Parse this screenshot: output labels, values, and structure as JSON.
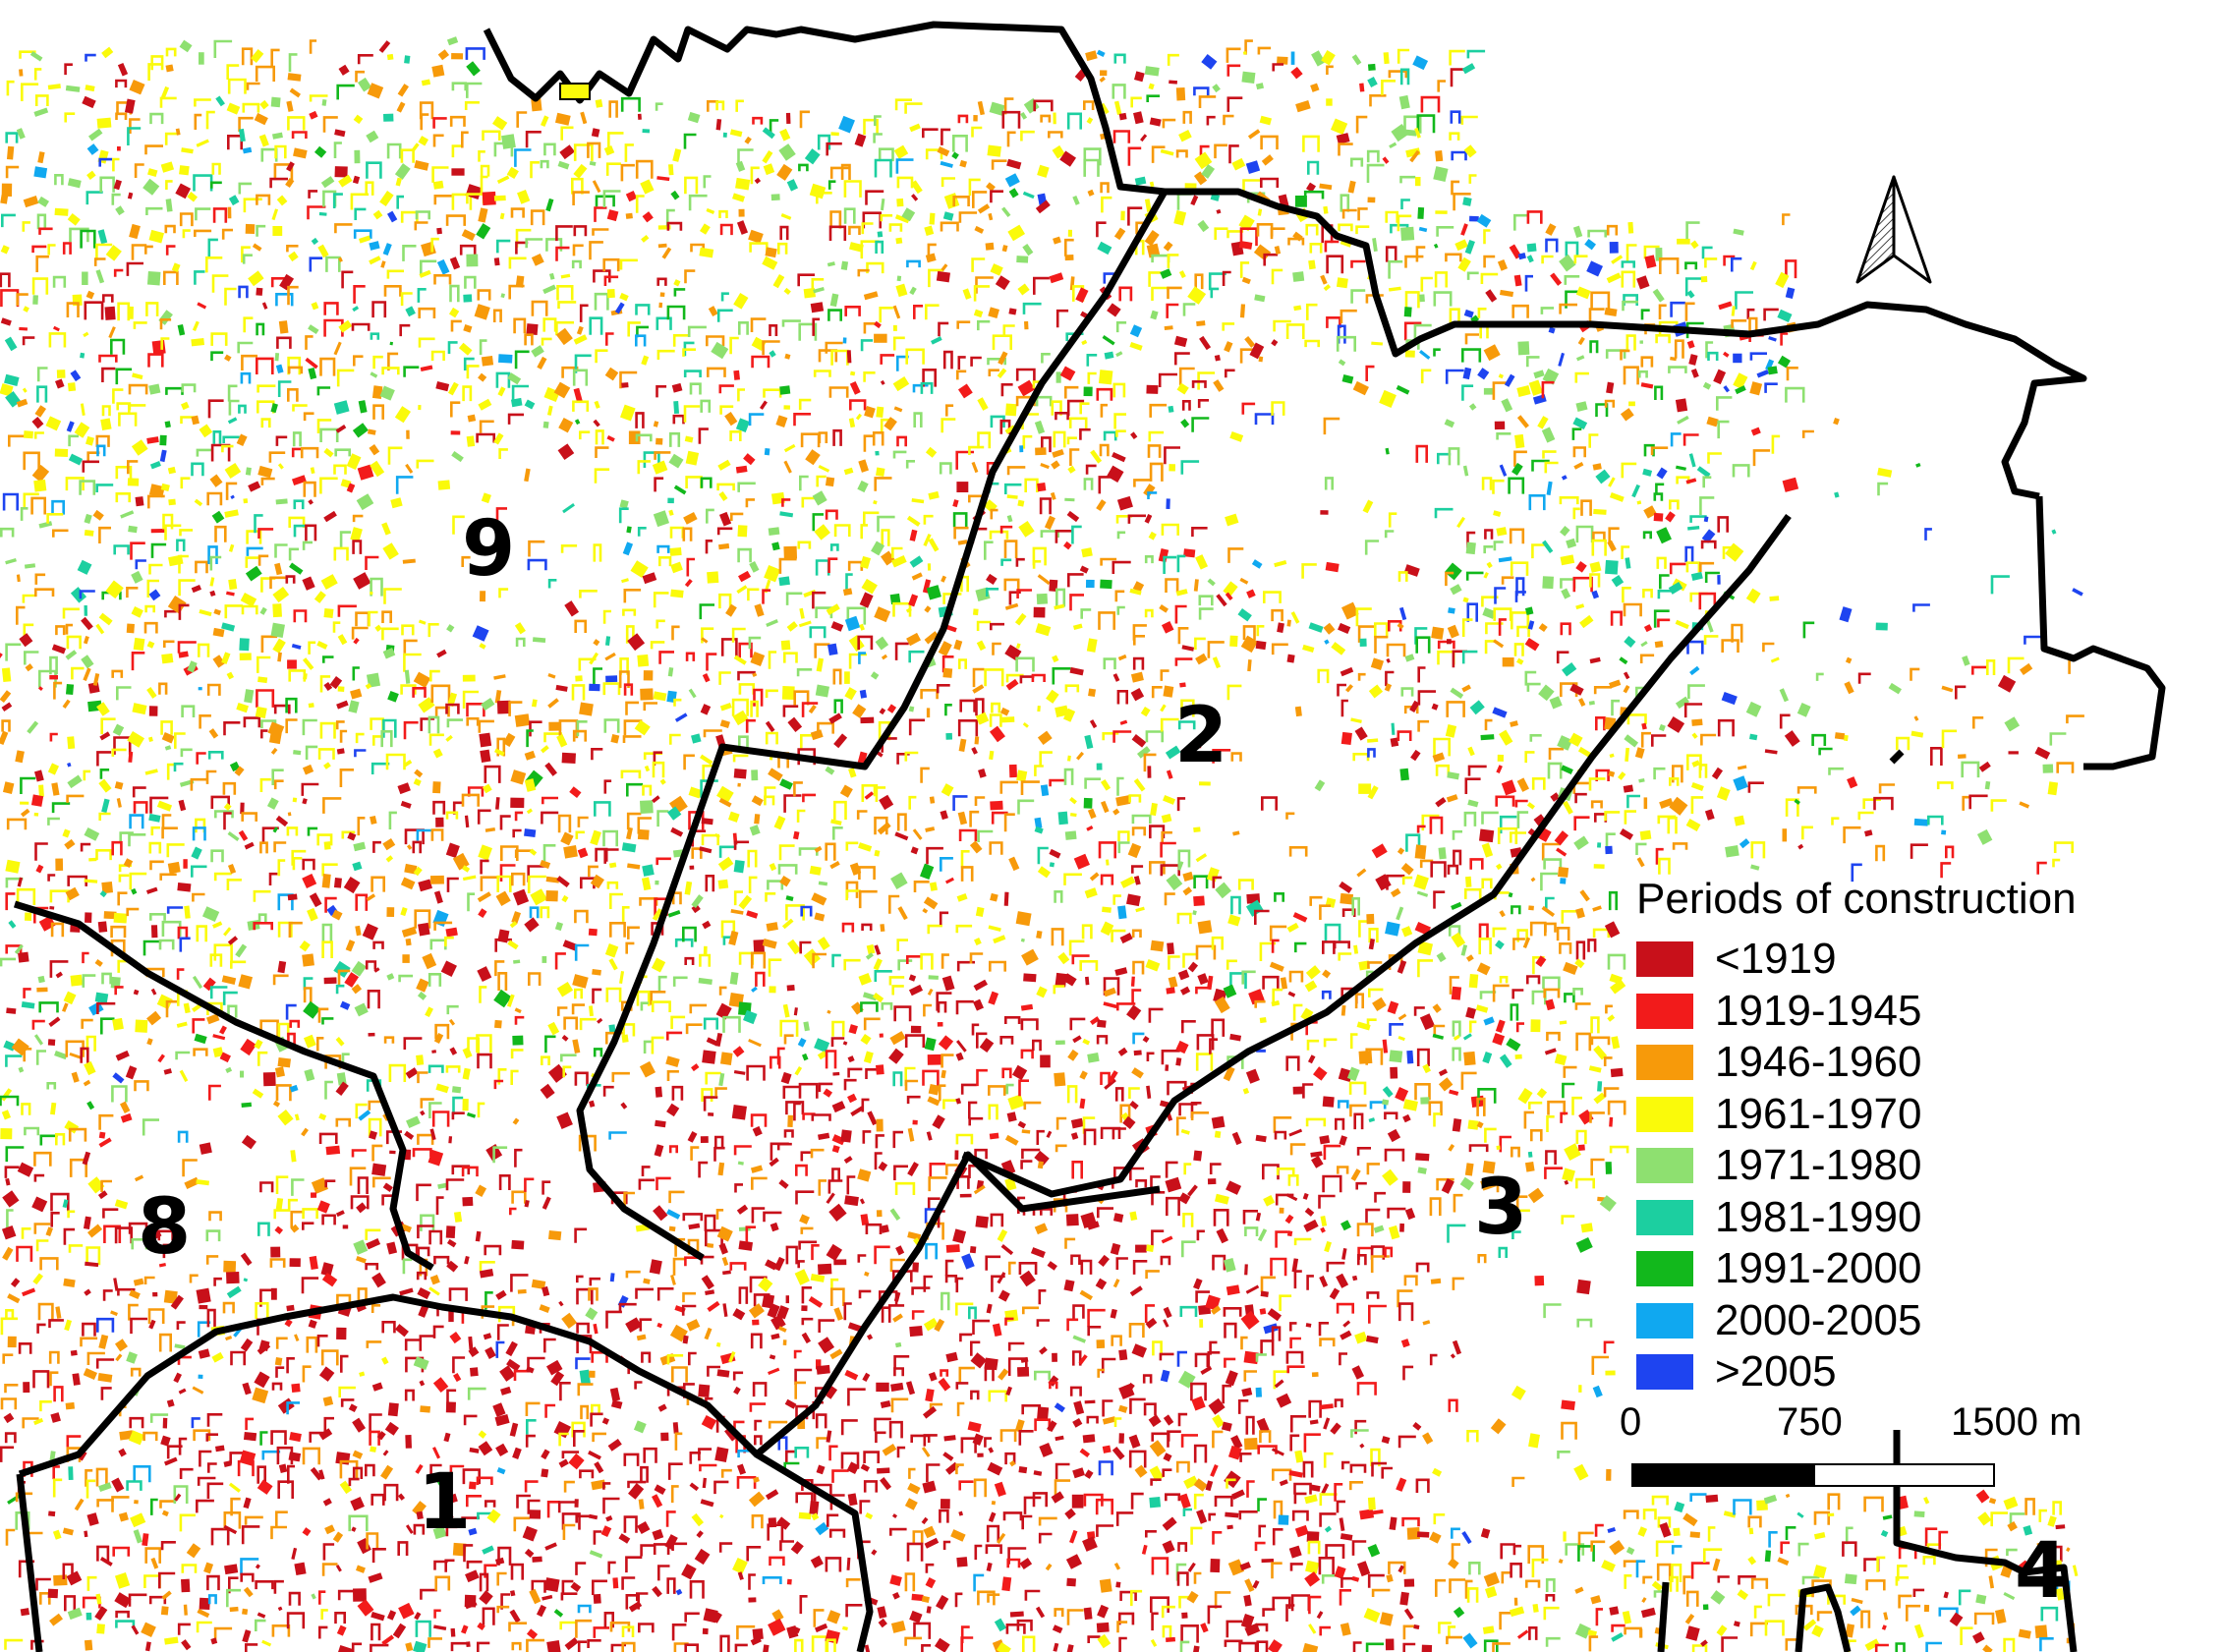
{
  "map": {
    "district_labels": [
      "9",
      "2",
      "8",
      "3",
      "1",
      "4"
    ],
    "legend": {
      "title": "Periods of construction",
      "items": [
        {
          "label": "<1919",
          "color": "#c8101a"
        },
        {
          "label": "1919-1945",
          "color": "#f21b1b"
        },
        {
          "label": "1946-1960",
          "color": "#f79a0a"
        },
        {
          "label": "1961-1970",
          "color": "#fafa0a"
        },
        {
          "label": "1971-1980",
          "color": "#8ee070"
        },
        {
          "label": "1981-1990",
          "color": "#1ccfa0"
        },
        {
          "label": "1991-2000",
          "color": "#12b81c"
        },
        {
          "label": "2000-2005",
          "color": "#10a8f0"
        },
        {
          "label": ">2005",
          "color": "#1e44f0"
        }
      ]
    },
    "scale_bar": {
      "ticks": [
        "0",
        "750",
        "1500 m"
      ]
    },
    "north_arrow": "north-arrow-icon"
  }
}
